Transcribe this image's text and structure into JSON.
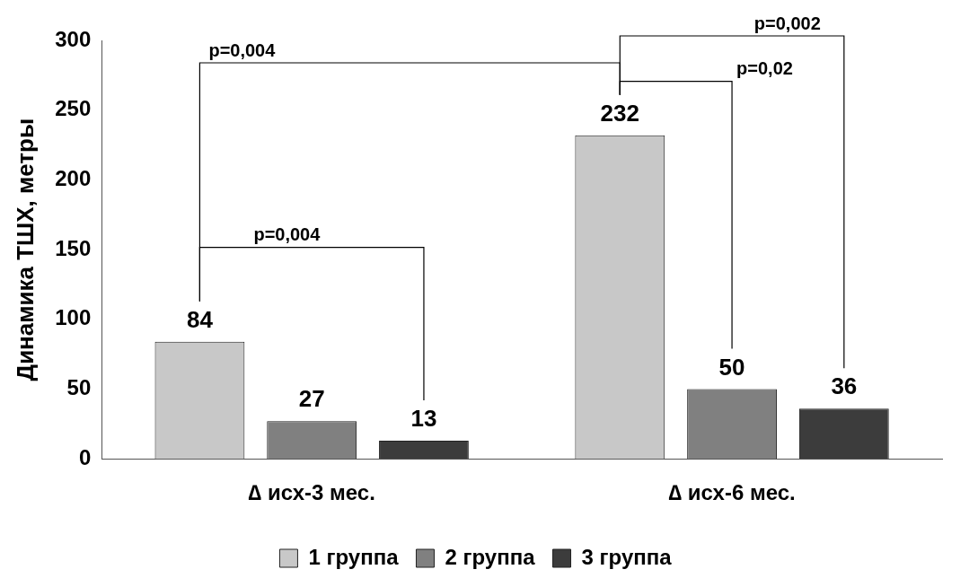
{
  "chart_data": {
    "type": "bar",
    "ylabel": "Динамика ТШХ, метры",
    "categories": [
      "∆ исх-3 мес.",
      "∆ исх-6 мес."
    ],
    "series": [
      {
        "name": "1 группа",
        "color": "#c8c8c8",
        "values": [
          84,
          232
        ]
      },
      {
        "name": "2 группа",
        "color": "#808080",
        "values": [
          27,
          50
        ]
      },
      {
        "name": "3 группа",
        "color": "#3c3c3c",
        "values": [
          13,
          36
        ]
      }
    ],
    "ylim": [
      0,
      300
    ],
    "yticks": [
      0,
      50,
      100,
      150,
      200,
      250,
      300
    ],
    "grid": false,
    "legend": "bottom",
    "data_labels": true,
    "annotations": [
      "p=0,004",
      "p=0,004",
      "p=0,02",
      "p=0,002"
    ]
  }
}
